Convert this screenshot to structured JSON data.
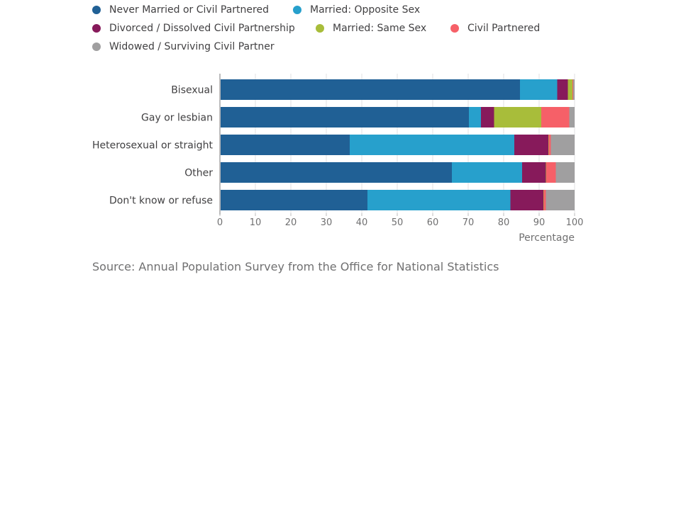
{
  "chart_data": {
    "type": "bar",
    "orientation": "horizontal",
    "stacked": true,
    "categories": [
      "Bisexual",
      "Gay or lesbian",
      "Heterosexual or straight",
      "Other",
      "Don't know or refuse"
    ],
    "series": [
      {
        "name": "Never Married or Civil Partnered",
        "color": "#206095",
        "values": [
          84.6,
          70.2,
          36.6,
          65.4,
          41.6
        ]
      },
      {
        "name": "Married: Opposite Sex",
        "color": "#27a0cc",
        "values": [
          10.5,
          3.4,
          46.4,
          19.8,
          40.3
        ]
      },
      {
        "name": "Divorced / Dissolved Civil Partnership",
        "color": "#871a5b",
        "values": [
          3.0,
          3.7,
          9.6,
          6.7,
          9.3
        ]
      },
      {
        "name": "Married: Same Sex",
        "color": "#a8bd3a",
        "values": [
          1.3,
          13.3,
          0.1,
          0.1,
          0.1
        ]
      },
      {
        "name": "Civil Partnered",
        "color": "#f66068",
        "values": [
          0.2,
          7.9,
          0.6,
          2.7,
          0.6
        ]
      },
      {
        "name": "Widowed / Surviving Civil Partner",
        "color": "#a09fa0",
        "values": [
          0.4,
          1.5,
          6.7,
          5.3,
          8.1
        ]
      }
    ],
    "xlim": [
      0,
      100
    ],
    "xticks": [
      0,
      10,
      20,
      30,
      40,
      50,
      60,
      70,
      80,
      90,
      100
    ],
    "xlabel": "Percentage",
    "ylabel": "",
    "grid": true,
    "legend_position": "top"
  },
  "source": "Source: Annual Population Survey from the Office for National Statistics"
}
